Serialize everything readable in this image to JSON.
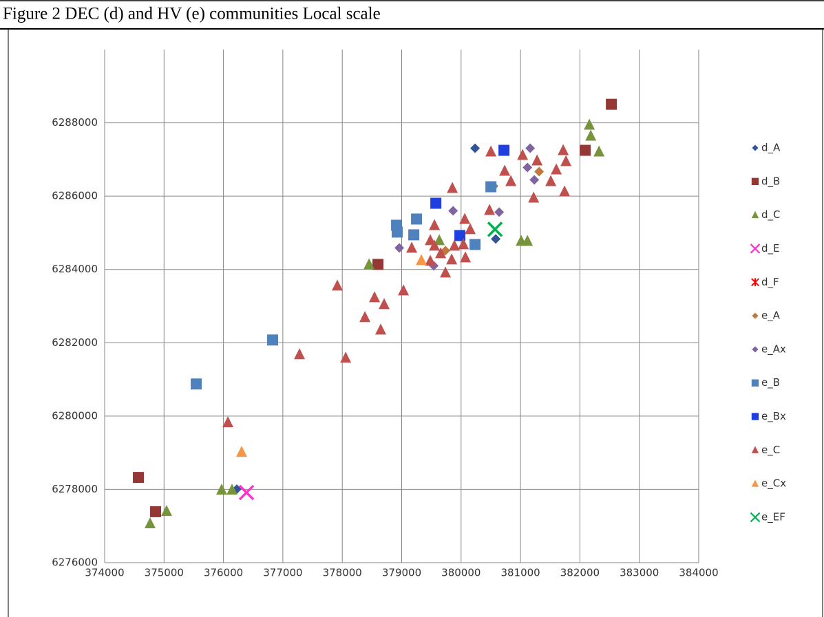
{
  "caption": "Figure 2 DEC (d) and HV (e) communities Local scale",
  "chart_data": {
    "type": "scatter",
    "xlim": [
      374000,
      384000
    ],
    "xticks": [
      374000,
      375000,
      376000,
      377000,
      378000,
      379000,
      380000,
      381000,
      382000,
      383000,
      384000
    ],
    "ylim": [
      6276000,
      6290000
    ],
    "yticks": [
      6276000,
      6278000,
      6280000,
      6282000,
      6284000,
      6286000,
      6288000
    ],
    "grid": true,
    "legend": "right",
    "series": [
      {
        "name": "d_A",
        "color": "#2F5597",
        "marker": "diamond",
        "x": [
          380235,
          380583,
          376225
        ],
        "y": [
          6287306,
          6284831,
          6278006
        ]
      },
      {
        "name": "d_B",
        "color": "#953735",
        "marker": "square",
        "x": [
          382530,
          382090,
          378601,
          374568,
          374858
        ],
        "y": [
          6288506,
          6287250,
          6284138,
          6278325,
          6277390
        ]
      },
      {
        "name": "d_C",
        "color": "#77933C",
        "marker": "triangle",
        "x": [
          382159,
          382183,
          382322,
          378451,
          379633,
          381012,
          381117,
          375043,
          374765,
          375970,
          376144
        ],
        "y": [
          6287944,
          6287644,
          6287213,
          6284138,
          6284794,
          6284775,
          6284775,
          6277406,
          6277069,
          6277988,
          6277988
        ]
      },
      {
        "name": "d_E",
        "color": "#FF33CC",
        "marker": "x",
        "x": [
          376388
        ],
        "y": [
          6277913
        ]
      },
      {
        "name": "d_F",
        "color": "#FF0000",
        "marker": "star",
        "x": [],
        "y": []
      },
      {
        "name": "e_A",
        "color": "#C0783C",
        "marker": "diamond",
        "x": [
          380548,
          381313,
          379737
        ],
        "y": [
          6286275,
          6286669,
          6284513
        ]
      },
      {
        "name": "e_Ax",
        "color": "#8064A2",
        "marker": "diamond",
        "x": [
          381163,
          381117,
          381233,
          379865,
          380641,
          378960,
          379540
        ],
        "y": [
          6287306,
          6286781,
          6286444,
          6285600,
          6285563,
          6284588,
          6284100
        ]
      },
      {
        "name": "e_B",
        "color": "#4F81BD",
        "marker": "square",
        "x": [
          375541,
          376828,
          378914,
          378925,
          379250,
          379204,
          380235,
          380502
        ],
        "y": [
          6280875,
          6282075,
          6285206,
          6285019,
          6285375,
          6284944,
          6284681,
          6286256
        ]
      },
      {
        "name": "e_Bx",
        "color": "#1F3FE0",
        "marker": "square",
        "x": [
          380722,
          379575,
          379980
        ],
        "y": [
          6287250,
          6285806,
          6284925
        ]
      },
      {
        "name": "e_C",
        "color": "#C0504D",
        "marker": "triangle",
        "x": [
          380502,
          380734,
          380838,
          381035,
          381279,
          381221,
          381719,
          381765,
          381742,
          381510,
          381603,
          379853,
          380479,
          380062,
          380154,
          379552,
          379482,
          379169,
          379552,
          379656,
          379888,
          380039,
          380073,
          379842,
          379482,
          379737,
          377917,
          378543,
          378381,
          378705,
          378647,
          379030,
          377280,
          378057,
          376075
        ],
        "y": [
          6287213,
          6286688,
          6286406,
          6287119,
          6286969,
          6285956,
          6287250,
          6286950,
          6286125,
          6286406,
          6286725,
          6286219,
          6285619,
          6285375,
          6285094,
          6285206,
          6284794,
          6284588,
          6284644,
          6284438,
          6284644,
          6284681,
          6284325,
          6284269,
          6284231,
          6283913,
          6283556,
          6283238,
          6282694,
          6283050,
          6282356,
          6283425,
          6281681,
          6281588,
          6279825
        ]
      },
      {
        "name": "e_Cx",
        "color": "#F79646",
        "marker": "triangle",
        "x": [
          379331,
          376306
        ],
        "y": [
          6284250,
          6279019
        ]
      },
      {
        "name": "e_EF",
        "color": "#00B050",
        "marker": "x",
        "x": [
          380571
        ],
        "y": [
          6285094
        ]
      }
    ]
  }
}
